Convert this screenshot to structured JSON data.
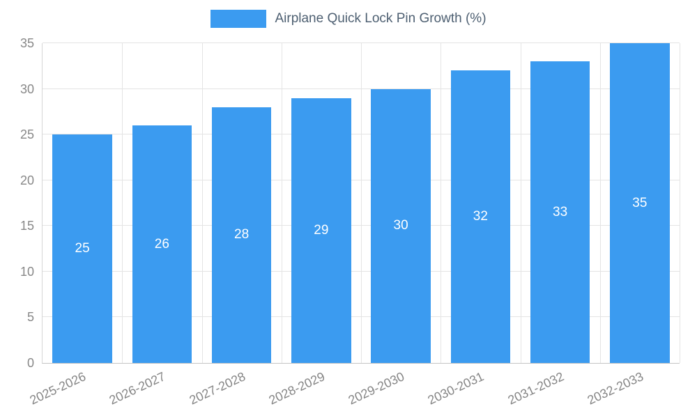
{
  "chart_data": {
    "type": "bar",
    "title": "Airplane Quick Lock Pin Growth (%)",
    "categories": [
      "2025-2026",
      "2026-2027",
      "2027-2028",
      "2028-2029",
      "2029-2030",
      "2030-2031",
      "2031-2032",
      "2032-2033"
    ],
    "values": [
      25,
      26,
      28,
      29,
      30,
      32,
      33,
      35
    ],
    "xlabel": "",
    "ylabel": "",
    "ylim": [
      0,
      35
    ],
    "ytick_step": 5,
    "yticks": [
      0,
      5,
      10,
      15,
      20,
      25,
      30,
      35
    ],
    "grid": true,
    "legend_position": "top-center",
    "bar_color": "#3b9bf0",
    "bar_value_label_color": "#ffffff"
  }
}
